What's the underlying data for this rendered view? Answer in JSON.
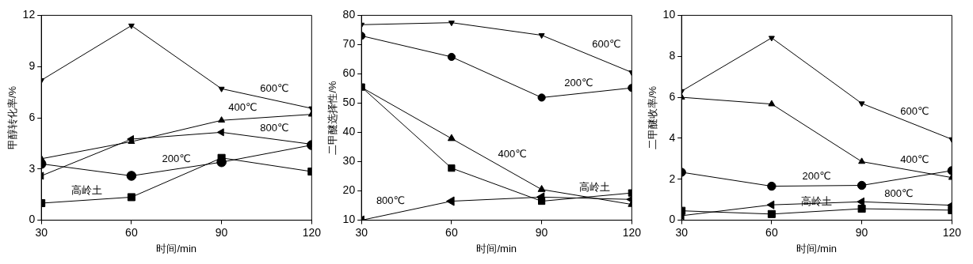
{
  "chart_data": [
    {
      "type": "line",
      "xlabel": "时间/min",
      "ylabel": "甲醇转化率/%",
      "x": [
        30,
        60,
        90,
        120
      ],
      "xlim": [
        30,
        120
      ],
      "xticks": [
        30,
        60,
        90,
        120
      ],
      "ylim": [
        0,
        12
      ],
      "yticks": [
        0,
        3,
        6,
        9,
        12
      ],
      "grid": false,
      "legend": false,
      "series": [
        {
          "name": "600℃",
          "color": "#000000",
          "marker": "triangle-down",
          "values": [
            8.2,
            11.4,
            7.7,
            6.55
          ]
        },
        {
          "name": "400℃",
          "color": "#000000",
          "marker": "triangle",
          "values": [
            3.6,
            4.6,
            5.85,
            6.2
          ]
        },
        {
          "name": "800℃",
          "color": "#000000",
          "marker": "triangle-left",
          "values": [
            2.6,
            4.75,
            5.15,
            4.45
          ]
        },
        {
          "name": "200℃",
          "color": "#000000",
          "marker": "circle",
          "values": [
            3.3,
            2.6,
            3.4,
            4.4
          ]
        },
        {
          "name": "高岭土",
          "color": "#000000",
          "marker": "square",
          "values": [
            1.0,
            1.35,
            3.65,
            2.85
          ]
        }
      ]
    },
    {
      "type": "line",
      "xlabel": "时间/min",
      "ylabel": "二甲醚选择性/%",
      "x": [
        30,
        60,
        90,
        120
      ],
      "xlim": [
        30,
        120
      ],
      "xticks": [
        30,
        60,
        90,
        120
      ],
      "ylim": [
        10,
        80
      ],
      "yticks": [
        10,
        20,
        30,
        40,
        50,
        60,
        70,
        80
      ],
      "grid": false,
      "legend": false,
      "series": [
        {
          "name": "600℃",
          "color": "#000000",
          "marker": "triangle-down",
          "values": [
            76.8,
            77.5,
            73.2,
            60.5
          ]
        },
        {
          "name": "200℃",
          "color": "#000000",
          "marker": "circle",
          "values": [
            73,
            65.8,
            51.9,
            55.2
          ]
        },
        {
          "name": "400℃",
          "color": "#000000",
          "marker": "triangle",
          "values": [
            55.4,
            37.9,
            20.5,
            15.4
          ]
        },
        {
          "name": "高岭土",
          "color": "#000000",
          "marker": "square",
          "values": [
            55.5,
            27.8,
            16.5,
            19.3
          ]
        },
        {
          "name": "800℃",
          "color": "#000000",
          "marker": "triangle-left",
          "values": [
            10,
            16.5,
            17.9,
            17.1
          ]
        }
      ]
    },
    {
      "type": "line",
      "xlabel": "时间/min",
      "ylabel": "二甲醚收率/%",
      "x": [
        30,
        60,
        90,
        120
      ],
      "xlim": [
        30,
        120
      ],
      "xticks": [
        30,
        60,
        90,
        120
      ],
      "ylim": [
        0,
        10
      ],
      "yticks": [
        0,
        2,
        4,
        6,
        8,
        10
      ],
      "grid": false,
      "legend": false,
      "series": [
        {
          "name": "600℃",
          "color": "#000000",
          "marker": "triangle-down",
          "values": [
            6.3,
            8.9,
            5.7,
            3.95
          ]
        },
        {
          "name": "400℃",
          "color": "#000000",
          "marker": "triangle",
          "values": [
            6.0,
            5.67,
            2.86,
            2.08
          ]
        },
        {
          "name": "200℃",
          "color": "#000000",
          "marker": "circle",
          "values": [
            2.34,
            1.66,
            1.7,
            2.42
          ]
        },
        {
          "name": "800℃",
          "color": "#000000",
          "marker": "triangle-left",
          "values": [
            0.22,
            0.75,
            0.9,
            0.73
          ]
        },
        {
          "name": "高岭土",
          "color": "#000000",
          "marker": "square",
          "values": [
            0.46,
            0.3,
            0.56,
            0.49
          ]
        }
      ]
    }
  ]
}
